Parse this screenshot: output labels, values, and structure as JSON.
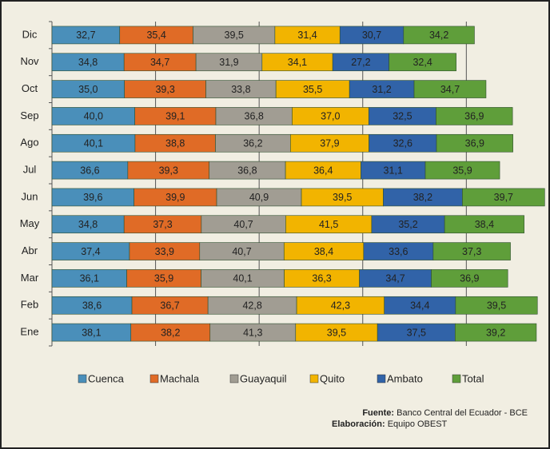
{
  "chart_data": {
    "type": "stacked-bar",
    "orientation": "horizontal",
    "categories": [
      "Dic",
      "Nov",
      "Oct",
      "Sep",
      "Ago",
      "Jul",
      "Jun",
      "May",
      "Abr",
      "Mar",
      "Feb",
      "Ene"
    ],
    "xlim": [
      0,
      240
    ],
    "xticks": [
      0,
      50,
      100,
      150,
      200
    ],
    "grid": true,
    "legend": "bottom",
    "series": [
      {
        "name": "Cuenca",
        "color": "#4a8fba",
        "values": [
          32.7,
          34.8,
          35.0,
          40.0,
          40.1,
          36.6,
          39.6,
          34.8,
          37.4,
          36.1,
          38.6,
          38.1
        ],
        "value_labels": [
          "32,7",
          "34,8",
          "35,0",
          "40,0",
          "40,1",
          "36,6",
          "39,6",
          "34,8",
          "37,4",
          "36,1",
          "38,6",
          "38,1"
        ]
      },
      {
        "name": "Machala",
        "color": "#e06b26",
        "values": [
          35.4,
          34.7,
          39.3,
          39.1,
          38.8,
          39.3,
          39.9,
          37.3,
          33.9,
          35.9,
          36.7,
          38.2
        ],
        "value_labels": [
          "35,4",
          "34,7",
          "39,3",
          "39,1",
          "38,8",
          "39,3",
          "39,9",
          "37,3",
          "33,9",
          "35,9",
          "36,7",
          "38,2"
        ]
      },
      {
        "name": "Guayaquil",
        "color": "#a19d93",
        "values": [
          39.5,
          31.9,
          33.8,
          36.8,
          36.2,
          36.8,
          40.9,
          40.7,
          40.7,
          40.1,
          42.8,
          41.3
        ],
        "value_labels": [
          "39,5",
          "31,9",
          "33,8",
          "36,8",
          "36,2",
          "36,8",
          "40,9",
          "40,7",
          "40,7",
          "40,1",
          "42,8",
          "41,3"
        ]
      },
      {
        "name": "Quito",
        "color": "#f2b400",
        "values": [
          31.4,
          34.1,
          35.5,
          37.0,
          37.9,
          36.4,
          39.5,
          41.5,
          38.4,
          36.3,
          42.3,
          39.5
        ],
        "value_labels": [
          "31,4",
          "34,1",
          "35,5",
          "37,0",
          "37,9",
          "36,4",
          "39,5",
          "41,5",
          "38,4",
          "36,3",
          "42,3",
          "39,5"
        ]
      },
      {
        "name": "Ambato",
        "color": "#3163a8",
        "values": [
          30.7,
          27.2,
          31.2,
          32.5,
          32.6,
          31.1,
          38.2,
          35.2,
          33.6,
          34.7,
          34.4,
          37.5
        ],
        "value_labels": [
          "30,7",
          "27,2",
          "31,2",
          "32,5",
          "32,6",
          "31,1",
          "38,2",
          "35,2",
          "33,6",
          "34,7",
          "34,4",
          "37,5"
        ]
      },
      {
        "name": "Total",
        "color": "#5f9e3a",
        "values": [
          34.2,
          32.4,
          34.7,
          36.9,
          36.9,
          35.9,
          39.7,
          38.4,
          37.3,
          36.9,
          39.5,
          39.2
        ],
        "value_labels": [
          "34,2",
          "32,4",
          "34,7",
          "36,9",
          "36,9",
          "35,9",
          "39,7",
          "38,4",
          "37,3",
          "36,9",
          "39,5",
          "39,2"
        ]
      }
    ],
    "source_label": "Fuente:",
    "source": "Banco Central del Ecuador - BCE",
    "credit_label": "Elaboración:",
    "credit": "Equipo OBEST"
  }
}
